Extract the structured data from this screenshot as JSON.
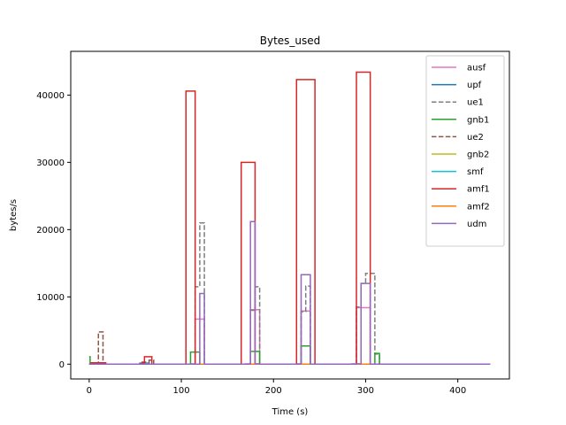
{
  "chart_data": {
    "type": "line",
    "title": "Bytes_used",
    "xlabel": "Time (s)",
    "ylabel": "bytes/s",
    "xlim": [
      -20,
      456
    ],
    "ylim": [
      -2200,
      46500
    ],
    "xticks": [
      0,
      100,
      200,
      300,
      400
    ],
    "yticks": [
      0,
      10000,
      20000,
      30000,
      40000
    ],
    "grid": false,
    "legend_position": "upper right",
    "series": [
      {
        "name": "ausf",
        "color": "#e377c2",
        "dash": false,
        "x": [
          0,
          110,
          110,
          115,
          115,
          125,
          125,
          170,
          170,
          175,
          175,
          185,
          185,
          225,
          225,
          230,
          230,
          240,
          240,
          285,
          285,
          290,
          290,
          305,
          305,
          435
        ],
        "y": [
          0,
          0,
          50,
          50,
          6700,
          6700,
          0,
          0,
          50,
          50,
          8100,
          8100,
          0,
          0,
          50,
          50,
          7900,
          7900,
          0,
          0,
          50,
          50,
          8400,
          8400,
          0,
          0
        ]
      },
      {
        "name": "upf",
        "color": "#1f77b4",
        "dash": false,
        "x": [
          0,
          55,
          55,
          65,
          65,
          435
        ],
        "y": [
          0,
          0,
          150,
          150,
          0,
          0
        ]
      },
      {
        "name": "ue1",
        "color": "#7f7f7f",
        "dash": true,
        "x": [
          0,
          115,
          115,
          120,
          120,
          125,
          125,
          175,
          175,
          180,
          180,
          185,
          185,
          230,
          230,
          235,
          235,
          240,
          240,
          290,
          290,
          295,
          295,
          300,
          300,
          310,
          310,
          315,
          315,
          435
        ],
        "y": [
          0,
          0,
          11500,
          11500,
          21000,
          21000,
          0,
          0,
          8000,
          8000,
          11500,
          11500,
          0,
          0,
          7800,
          7800,
          11600,
          11600,
          0,
          0,
          8500,
          8500,
          12000,
          12000,
          13500,
          13500,
          1500,
          1500,
          0,
          0
        ]
      },
      {
        "name": "gnb1",
        "color": "#2ca02c",
        "dash": false,
        "x": [
          0,
          1,
          1,
          2,
          2,
          110,
          110,
          120,
          120,
          125,
          125,
          175,
          175,
          185,
          185,
          230,
          230,
          240,
          240,
          300,
          300,
          310,
          310,
          315,
          315,
          435
        ],
        "y": [
          1100,
          1100,
          0,
          0,
          0,
          0,
          1800,
          1800,
          0,
          0,
          0,
          0,
          1900,
          1900,
          0,
          0,
          2700,
          2700,
          0,
          0,
          0,
          0,
          1600,
          1600,
          0,
          0
        ]
      },
      {
        "name": "ue2",
        "color": "#8c564b",
        "dash": true,
        "x": [
          0,
          10,
          10,
          15,
          15,
          16,
          16,
          55,
          55,
          65,
          65,
          70,
          70,
          435
        ],
        "y": [
          0,
          0,
          4800,
          4800,
          200,
          200,
          0,
          0,
          300,
          300,
          600,
          600,
          0,
          0
        ]
      },
      {
        "name": "gnb2",
        "color": "#bcbd22",
        "dash": false,
        "x": [
          0,
          435
        ],
        "y": [
          0,
          0
        ]
      },
      {
        "name": "smf",
        "color": "#17becf",
        "dash": false,
        "x": [
          0,
          60,
          60,
          63,
          63,
          435
        ],
        "y": [
          0,
          0,
          80,
          80,
          0,
          0
        ]
      },
      {
        "name": "amf1",
        "color": "#d62728",
        "dash": false,
        "x": [
          0,
          2,
          2,
          18,
          18,
          58,
          58,
          60,
          60,
          68,
          68,
          105,
          105,
          115,
          115,
          165,
          165,
          180,
          180,
          225,
          225,
          245,
          245,
          290,
          290,
          305,
          305,
          435
        ],
        "y": [
          0,
          0,
          200,
          200,
          0,
          0,
          200,
          200,
          1100,
          1100,
          0,
          0,
          40600,
          40600,
          0,
          0,
          30000,
          30000,
          0,
          0,
          42300,
          42300,
          0,
          0,
          43400,
          43400,
          0,
          0
        ]
      },
      {
        "name": "amf2",
        "color": "#ff7f0e",
        "dash": false,
        "x": [
          0,
          435
        ],
        "y": [
          0,
          0
        ]
      },
      {
        "name": "udm",
        "color": "#9467bd",
        "dash": false,
        "x": [
          0,
          120,
          120,
          125,
          125,
          175,
          175,
          180,
          180,
          185,
          185,
          230,
          230,
          240,
          240,
          290,
          290,
          295,
          295,
          305,
          305,
          435
        ],
        "y": [
          0,
          0,
          10500,
          10500,
          0,
          0,
          21200,
          21200,
          50,
          50,
          0,
          0,
          13300,
          13300,
          0,
          0,
          50,
          50,
          12000,
          12000,
          0,
          0
        ]
      }
    ]
  }
}
